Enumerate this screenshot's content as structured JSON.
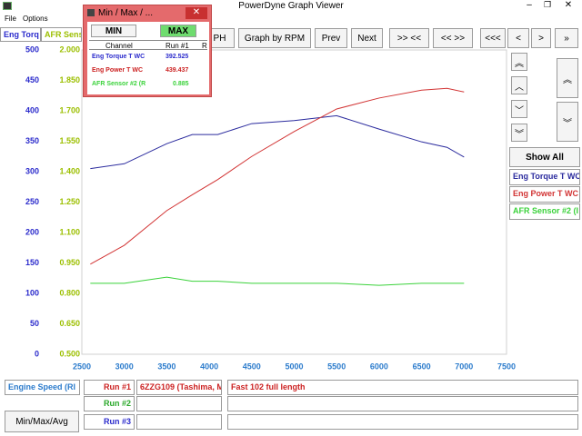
{
  "window": {
    "title": "PowerDyne Graph Viewer"
  },
  "menu": [
    "File",
    "Options"
  ],
  "toolbar": [
    "PH",
    "Graph by RPM",
    "Prev",
    "Next",
    ">> <<",
    "<< >>",
    "<<<",
    "<",
    ">",
    "»"
  ],
  "side_panel": {
    "show_all": "Show All"
  },
  "chart_data": {
    "type": "line",
    "x_label": "Engine Speed (RI",
    "y_label": "Eng Torq",
    "y2_label": "AFR Sens",
    "x": [
      2600,
      3000,
      3500,
      3800,
      4100,
      4500,
      5000,
      5500,
      6000,
      6500,
      6800,
      7000
    ],
    "series": [
      {
        "name": "Eng Torque T WC",
        "color": "#2b2b9e",
        "values": [
          305,
          313,
          346,
          361,
          361,
          379,
          384,
          392,
          370,
          349,
          340,
          324
        ]
      },
      {
        "name": "Eng Power T WC",
        "color": "#d23434",
        "values": [
          148,
          179,
          236,
          262,
          287,
          325,
          366,
          403,
          421,
          434,
          437,
          431
        ]
      },
      {
        "name": "AFR Sensor #2 (I",
        "color": "#3ad23a",
        "axis": "y2",
        "values": [
          0.85,
          0.85,
          0.88,
          0.86,
          0.86,
          0.85,
          0.85,
          0.85,
          0.84,
          0.85,
          0.85,
          0.85
        ]
      }
    ],
    "xlim": [
      2500,
      7500
    ],
    "xticks": [
      2500,
      3000,
      3500,
      4000,
      4500,
      5000,
      5500,
      6000,
      6500,
      7000,
      7500
    ],
    "ylim": [
      0,
      500
    ],
    "yticks": [
      0,
      50,
      100,
      150,
      200,
      250,
      300,
      350,
      400,
      450,
      500
    ],
    "y2lim": [
      0.5,
      2
    ],
    "y2ticks": [
      {
        "value": 0.5,
        "label": "0.500"
      },
      {
        "value": 0.65,
        "label": "0.650"
      },
      {
        "value": 0.8,
        "label": "0.800"
      },
      {
        "value": 0.95,
        "label": "0.950"
      },
      {
        "value": 1.1,
        "label": "1.100"
      },
      {
        "value": 1.25,
        "label": "1.250"
      },
      {
        "value": 1.4,
        "label": "1.400"
      },
      {
        "value": 1.55,
        "label": "1.550"
      },
      {
        "value": 1.7,
        "label": "1.700"
      },
      {
        "value": 1.85,
        "label": "1.850"
      },
      {
        "value": 2,
        "label": "2.000"
      }
    ],
    "grid": false
  },
  "runs": [
    {
      "label": "Run #1",
      "vehicle": "6ZZG109 (Tashima, M",
      "note": "Fast 102 full length"
    },
    {
      "label": "Run #2"
    },
    {
      "label": "Run #3"
    }
  ],
  "min_max_button": "Min/Max/Avg",
  "dialog": {
    "title": "Min / Max / ...",
    "min_button": "MIN",
    "max_button": "MAX",
    "headers": [
      "Channel",
      "Run #1",
      "R"
    ],
    "rows": [
      [
        "Eng Torque T WC",
        "392.525"
      ],
      [
        "Eng Power T WC",
        "439.437"
      ],
      [
        "AFR Sensor #2 (R",
        "0.885"
      ]
    ]
  }
}
